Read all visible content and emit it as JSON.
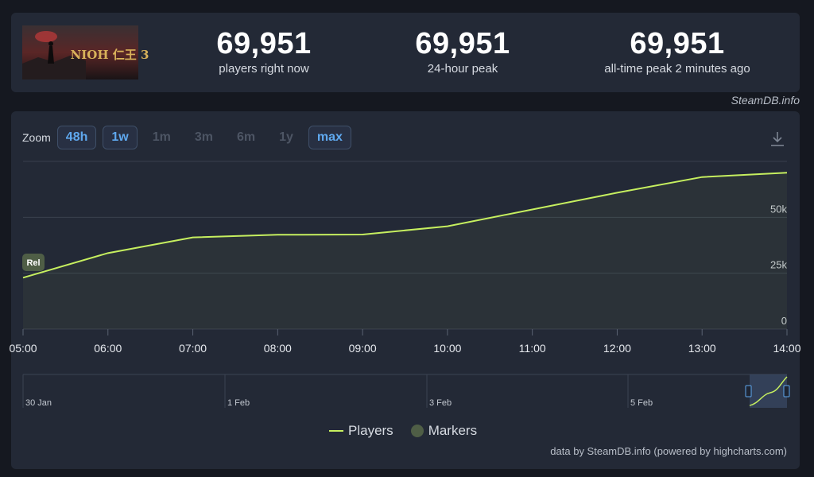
{
  "stats": [
    {
      "value": "69,951",
      "label": "players right now"
    },
    {
      "value": "69,951",
      "label": "24-hour peak"
    },
    {
      "value": "69,951",
      "label": "all-time peak 2 minutes ago"
    }
  ],
  "game_logo_text": "NIOH 仁王 3",
  "credit_top": "SteamDB.info",
  "zoom": {
    "label": "Zoom",
    "buttons": [
      "48h",
      "1w",
      "1m",
      "3m",
      "6m",
      "1y",
      "max"
    ],
    "active": [
      "48h",
      "1w",
      "max"
    ]
  },
  "legend": {
    "players": "Players",
    "markers": "Markers"
  },
  "credit_bottom": "data by SteamDB.info (powered by highcharts.com)",
  "colors": {
    "line": "#c6ef5f",
    "marker": "#4f5e46",
    "accent": "#5fa8ee"
  },
  "chart_data": {
    "type": "line",
    "title": "",
    "xlabel": "",
    "ylabel": "",
    "x": [
      "05:00",
      "06:00",
      "07:00",
      "08:00",
      "09:00",
      "10:00",
      "11:00",
      "12:00",
      "13:00",
      "14:00"
    ],
    "series": [
      {
        "name": "Players",
        "values": [
          23000,
          34000,
          41000,
          42200,
          42300,
          46000,
          53500,
          61000,
          68000,
          69951
        ]
      }
    ],
    "ylim": [
      0,
      75000
    ],
    "yticks": [
      {
        "value": 0,
        "label": "0"
      },
      {
        "value": 25000,
        "label": "25k"
      },
      {
        "value": 50000,
        "label": "50k"
      }
    ],
    "markers": [
      {
        "x": "05:00",
        "label": "Rel"
      }
    ],
    "navigator": {
      "labels": [
        "30 Jan",
        "1 Feb",
        "3 Feb",
        "5 Feb"
      ]
    },
    "grid": true,
    "legend_position": "bottom-center"
  }
}
